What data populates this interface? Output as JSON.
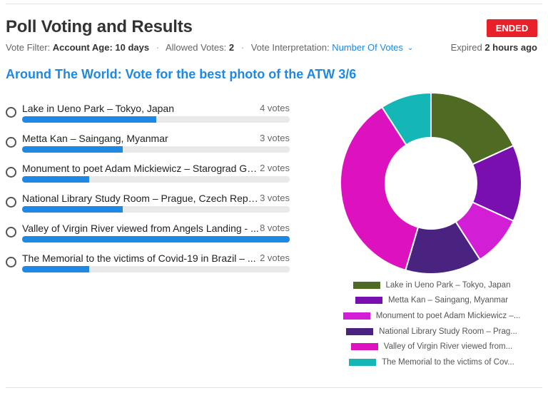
{
  "header": {
    "title": "Poll Voting and Results",
    "status": "ENDED",
    "expired_prefix": "Expired",
    "expired_value": "2 hours ago"
  },
  "filters": {
    "vote_filter_label": "Vote Filter:",
    "vote_filter_value": "Account Age: 10 days",
    "allowed_votes_label": "Allowed Votes:",
    "allowed_votes_value": "2",
    "interpretation_label": "Vote Interpretation:",
    "interpretation_value": "Number Of Votes",
    "separator": "·"
  },
  "poll": {
    "title": "Around The World: Vote for the best photo of the ATW 3/6",
    "options": [
      {
        "label": "Lake in Ueno Park – Tokyo, Japan",
        "votes_text": "4 votes",
        "votes": 4
      },
      {
        "label": "Metta Kan – Saingang, Myanmar",
        "votes_text": "3 votes",
        "votes": 3
      },
      {
        "label": "Monument to poet Adam Mickiewicz – Starograd Gd...",
        "votes_text": "2 votes",
        "votes": 2
      },
      {
        "label": "National Library Study Room – Prague, Czech Repub...",
        "votes_text": "3 votes",
        "votes": 3
      },
      {
        "label": "Valley of Virgin River viewed from Angels Landing - ...",
        "votes_text": "8 votes",
        "votes": 8
      },
      {
        "label": "The Memorial to the victims of Covid-19 in Brazil – ...",
        "votes_text": "2 votes",
        "votes": 2
      }
    ],
    "max_votes": 8
  },
  "chart_data": {
    "type": "pie",
    "variant": "donut",
    "categories": [
      "Lake in Ueno Park – Tokyo, Japan",
      "Metta Kan – Saingang, Myanmar",
      "Monument to poet Adam Mickiewicz –...",
      "National Library Study Room – Prag...",
      "Valley of Virgin River viewed from...",
      "The Memorial to the victims of Cov..."
    ],
    "values": [
      4,
      3,
      2,
      3,
      8,
      2
    ],
    "colors": [
      "#4f6b23",
      "#7a0fb0",
      "#d21fd6",
      "#4a2380",
      "#dc12bf",
      "#14b6b6"
    ],
    "legend_position": "bottom"
  },
  "colors": {
    "accent": "#1e88e5",
    "status_red": "#e8202a"
  }
}
